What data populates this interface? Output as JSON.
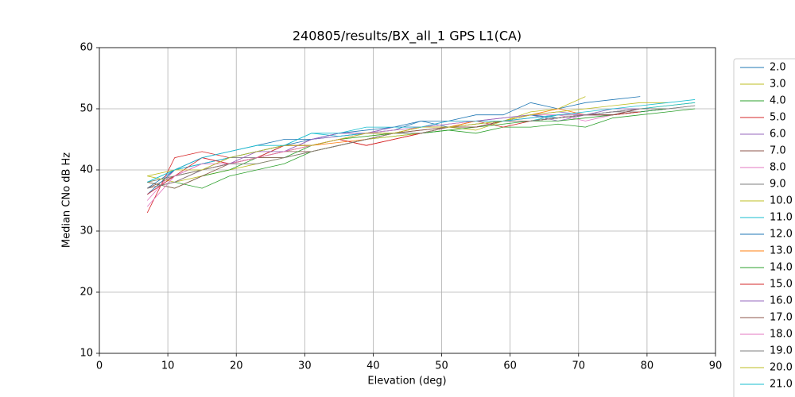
{
  "chart_data": {
    "type": "line",
    "title": "240805/results/BX_all_1 GPS L1(CA)",
    "x_label": "Elevation (deg)",
    "y_label": "Median CNo dB Hz",
    "xlim": [
      0,
      90
    ],
    "ylim": [
      10,
      60
    ],
    "xticks": [
      0,
      10,
      20,
      30,
      40,
      50,
      60,
      70,
      80,
      90
    ],
    "yticks": [
      10,
      20,
      30,
      40,
      50,
      60
    ],
    "grid": true,
    "legend": "outside right",
    "x": [
      7,
      11,
      15,
      19,
      23,
      27,
      31,
      35,
      39,
      43,
      47,
      51,
      55,
      59,
      63,
      67,
      71,
      75,
      79,
      83,
      87
    ],
    "series": [
      {
        "name": "2.0",
        "color": "#1f77b4",
        "values": [
          37,
          40,
          41,
          42,
          43,
          44,
          45,
          45.5,
          46,
          46.5,
          48,
          48,
          49,
          49,
          51,
          50,
          51,
          51.5,
          52,
          null,
          null
        ]
      },
      {
        "name": "3.0",
        "color": "#bcbd22",
        "values": [
          38,
          39,
          40,
          41,
          42,
          43,
          44,
          45,
          45.5,
          46,
          47,
          47,
          46.5,
          48,
          48,
          49,
          49,
          49.5,
          50,
          50.5,
          51
        ]
      },
      {
        "name": "4.0",
        "color": "#2ca02c",
        "values": [
          37,
          38,
          37,
          39,
          40,
          41,
          43,
          44,
          45,
          45.5,
          46,
          46.5,
          46,
          47,
          47,
          47.5,
          47,
          48.5,
          49,
          49.5,
          50
        ]
      },
      {
        "name": "5.0",
        "color": "#d62728",
        "values": [
          33,
          42,
          43,
          42,
          43,
          44,
          44,
          45,
          44,
          45,
          46,
          47,
          48,
          47,
          48,
          48.5,
          49,
          49,
          49.5,
          50,
          null
        ]
      },
      {
        "name": "6.0",
        "color": "#9467bd",
        "values": [
          36,
          39,
          41,
          42,
          42,
          43,
          45,
          45.5,
          46,
          47,
          47,
          47.5,
          48,
          48,
          49,
          48,
          49,
          49,
          50,
          50,
          null
        ]
      },
      {
        "name": "7.0",
        "color": "#8c564b",
        "values": [
          37,
          39,
          40,
          41,
          42,
          43,
          43,
          44,
          45,
          46,
          46.5,
          47,
          47,
          48,
          48,
          48.5,
          49,
          49.5,
          50,
          50,
          null
        ]
      },
      {
        "name": "8.0",
        "color": "#e377c2",
        "values": [
          35,
          40,
          42,
          41,
          43,
          43,
          45,
          46,
          46,
          46,
          47,
          48,
          48,
          48.5,
          49,
          49,
          48,
          49,
          49.5,
          null,
          null
        ]
      },
      {
        "name": "9.0",
        "color": "#7f7f7f",
        "values": [
          38,
          39,
          40,
          42,
          42,
          44,
          44,
          45,
          46,
          46,
          47,
          47,
          47.5,
          48,
          48,
          48.5,
          49,
          49.5,
          49.5,
          50,
          50.5
        ]
      },
      {
        "name": "10.0",
        "color": "#bcbd22",
        "values": [
          39,
          38,
          39,
          40,
          41,
          42,
          43,
          44,
          45,
          45.5,
          46,
          47,
          47.5,
          48,
          49.5,
          50,
          52,
          null,
          null,
          null,
          null
        ]
      },
      {
        "name": "11.0",
        "color": "#17becf",
        "values": [
          38,
          40,
          41,
          42,
          43,
          44,
          46,
          45.5,
          46,
          46.5,
          47,
          47.5,
          48,
          48,
          48,
          49,
          49,
          49.5,
          50,
          50.5,
          51
        ]
      },
      {
        "name": "12.0",
        "color": "#1f77b4",
        "values": [
          36,
          40,
          42,
          43,
          44,
          45,
          45,
          46,
          46.5,
          47,
          48,
          47,
          47,
          48,
          49,
          48.5,
          49,
          49,
          49.5,
          50,
          null
        ]
      },
      {
        "name": "13.0",
        "color": "#ff7f0e",
        "values": [
          37,
          38,
          40,
          41,
          42,
          43,
          44,
          44.5,
          45,
          46,
          47,
          47,
          48,
          48,
          49,
          50,
          49,
          null,
          null,
          null,
          null
        ]
      },
      {
        "name": "14.0",
        "color": "#2ca02c",
        "values": [
          38,
          37,
          39,
          40,
          42,
          42,
          44,
          45,
          45.5,
          46,
          46,
          46.5,
          47,
          47.5,
          48,
          48,
          48.5,
          49,
          49.5,
          50,
          null
        ]
      },
      {
        "name": "15.0",
        "color": "#d62728",
        "values": [
          36,
          39,
          42,
          41,
          42,
          44,
          44,
          45,
          44,
          45,
          46,
          47,
          47,
          48,
          48,
          48.5,
          49,
          49,
          49.5,
          null,
          null
        ]
      },
      {
        "name": "16.0",
        "color": "#9467bd",
        "values": [
          37,
          38,
          40,
          41,
          43,
          43,
          45,
          46,
          46,
          47,
          47,
          48,
          48,
          48.5,
          49,
          49.5,
          49,
          50,
          50,
          null,
          null
        ]
      },
      {
        "name": "17.0",
        "color": "#8c564b",
        "values": [
          38,
          37,
          39,
          41,
          42,
          42,
          43,
          44,
          45,
          46,
          46.5,
          47,
          47,
          48,
          48,
          48.5,
          49,
          49,
          50,
          50,
          null
        ]
      },
      {
        "name": "18.0",
        "color": "#e377c2",
        "values": [
          34,
          39,
          41,
          41,
          42,
          43,
          44,
          45,
          46,
          46.5,
          47,
          47.5,
          48,
          48,
          48.5,
          49,
          49,
          49.5,
          50,
          null,
          null
        ]
      },
      {
        "name": "19.0",
        "color": "#7f7f7f",
        "values": [
          37,
          38,
          40,
          41,
          41,
          42,
          43,
          44,
          45,
          46,
          46,
          47,
          47.5,
          48,
          48,
          48.5,
          49,
          49.5,
          50,
          50,
          50.5
        ]
      },
      {
        "name": "20.0",
        "color": "#bcbd22",
        "values": [
          39,
          40,
          40,
          42,
          43,
          44,
          44,
          45,
          46,
          46,
          47,
          47,
          47.5,
          48,
          49,
          49.5,
          50,
          50.5,
          51,
          51,
          null
        ]
      },
      {
        "name": "21.0",
        "color": "#17becf",
        "values": [
          38,
          40,
          42,
          43,
          44,
          44,
          46,
          46,
          47,
          47,
          47,
          48,
          48,
          48,
          48.5,
          49,
          49.5,
          50,
          50.5,
          51,
          51.5
        ]
      }
    ]
  }
}
